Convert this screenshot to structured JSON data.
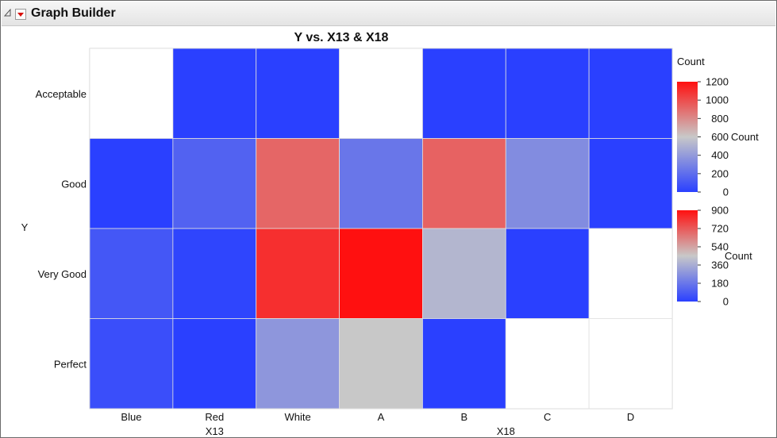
{
  "window": {
    "title": "Graph Builder"
  },
  "icons": {
    "collapse": "collapse-triangle-icon",
    "menu": "red-triangle-menu-icon"
  },
  "colors": {
    "low": "#2a40ff",
    "mid": "#c8c8c8",
    "high": "#ff1010",
    "grid": "#e0e0e0",
    "missing": "#ffffff"
  },
  "chart_data": {
    "type": "heatmap",
    "title": "Y vs. X13 & X18",
    "ylabel": "Y",
    "x_groups": [
      {
        "name": "X13",
        "categories": [
          "Blue",
          "Red",
          "White"
        ]
      },
      {
        "name": "X18",
        "categories": [
          "A",
          "B",
          "C",
          "D"
        ]
      }
    ],
    "y_categories": [
      "Acceptable",
      "Good",
      "Very Good",
      "Perfect"
    ],
    "values": {
      "X13": [
        [
          null,
          0,
          0
        ],
        [
          0,
          150,
          920
        ],
        [
          100,
          20,
          1100
        ],
        [
          60,
          0,
          380
        ]
      ],
      "X18": [
        [
          null,
          0,
          0,
          0
        ],
        [
          180,
          700,
          250,
          0
        ],
        [
          900,
          390,
          0,
          null
        ],
        [
          450,
          0,
          null,
          null
        ]
      ]
    },
    "scales": [
      {
        "group": "X13",
        "title": "Count",
        "side_label": "Count",
        "min": 0,
        "max": 1200,
        "ticks": [
          0,
          200,
          400,
          600,
          800,
          1000,
          1200
        ]
      },
      {
        "group": "X18",
        "title": "",
        "side_label": "Count",
        "min": 0,
        "max": 900,
        "ticks": [
          0,
          180,
          360,
          540,
          720,
          900
        ]
      }
    ],
    "grid": true,
    "legend": "right"
  }
}
